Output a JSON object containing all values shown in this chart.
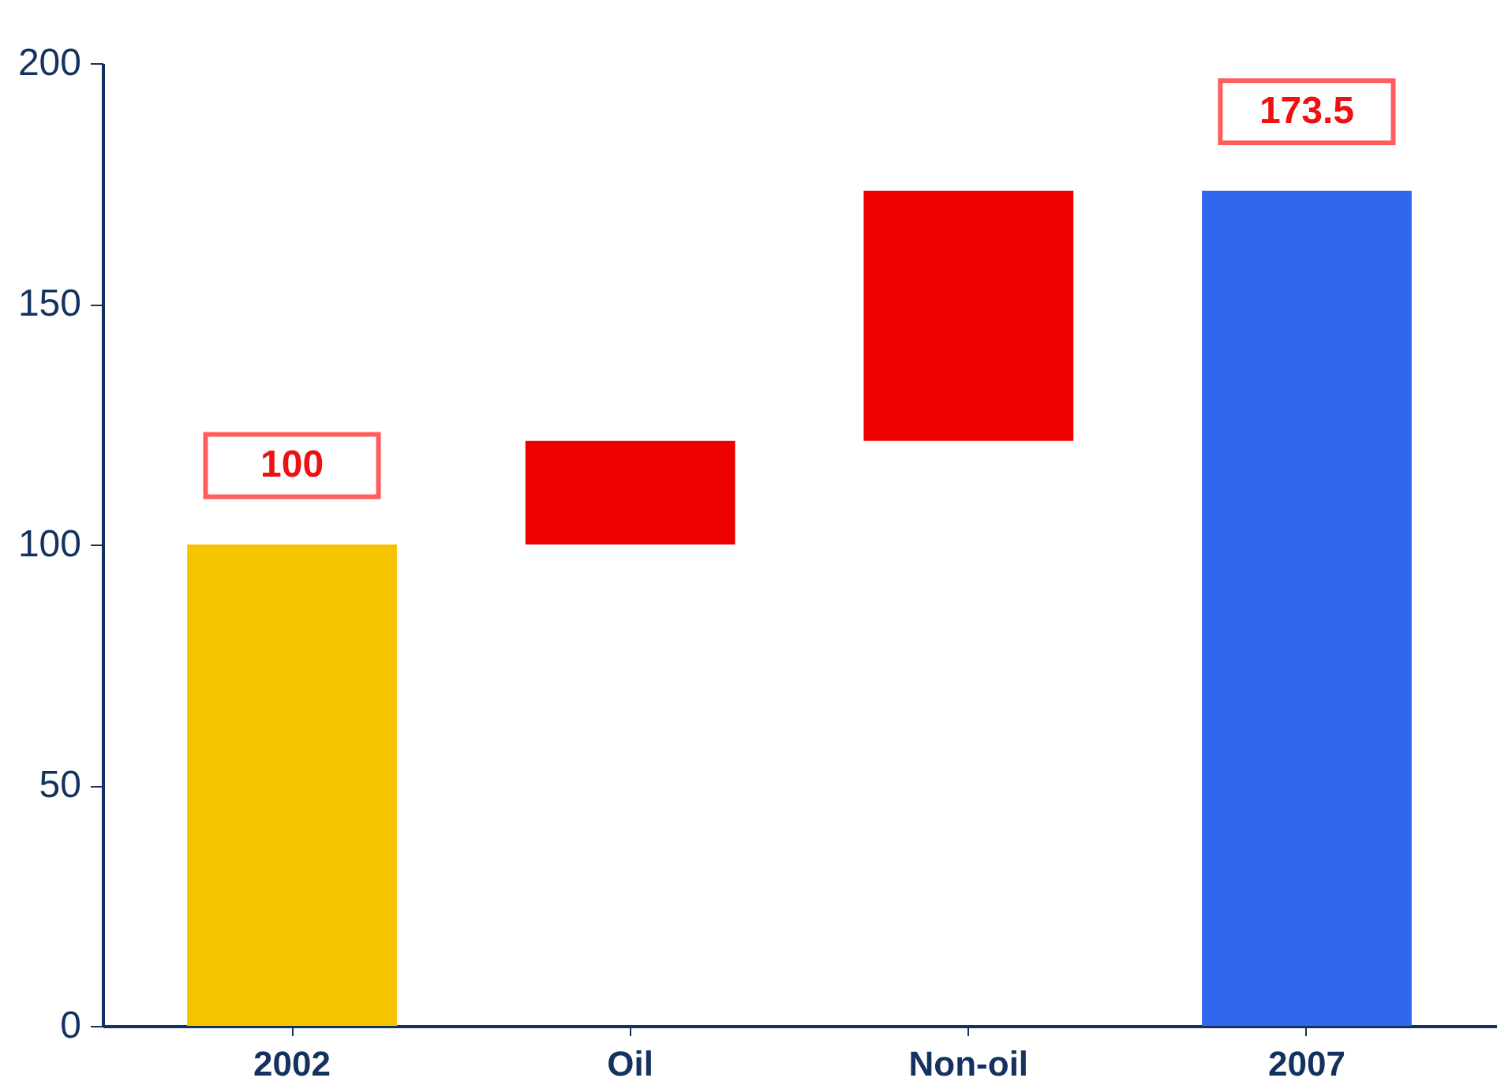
{
  "chart_data": {
    "type": "bar",
    "categories": [
      "2002",
      "Oil",
      "Non-oil",
      "2007"
    ],
    "values": [
      100,
      21.5,
      52,
      173.5
    ],
    "base": [
      0,
      100,
      121.5,
      0
    ],
    "colors": [
      "#f5c400",
      "#ee0000",
      "#ee0000",
      "#3366ee"
    ],
    "value_labels": [
      "100",
      null,
      null,
      "173.5"
    ],
    "ylim": [
      0,
      200
    ],
    "yticks": [
      0,
      50,
      100,
      150,
      200
    ],
    "grid": false
  }
}
